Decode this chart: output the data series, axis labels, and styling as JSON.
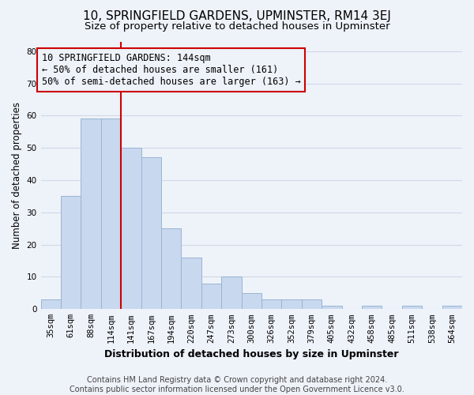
{
  "title": "10, SPRINGFIELD GARDENS, UPMINSTER, RM14 3EJ",
  "subtitle": "Size of property relative to detached houses in Upminster",
  "xlabel": "Distribution of detached houses by size in Upminster",
  "ylabel": "Number of detached properties",
  "bar_labels": [
    "35sqm",
    "61sqm",
    "88sqm",
    "114sqm",
    "141sqm",
    "167sqm",
    "194sqm",
    "220sqm",
    "247sqm",
    "273sqm",
    "300sqm",
    "326sqm",
    "352sqm",
    "379sqm",
    "405sqm",
    "432sqm",
    "458sqm",
    "485sqm",
    "511sqm",
    "538sqm",
    "564sqm"
  ],
  "bar_values": [
    3,
    35,
    59,
    59,
    50,
    47,
    25,
    16,
    8,
    10,
    5,
    3,
    3,
    3,
    1,
    0,
    1,
    0,
    1,
    0,
    1
  ],
  "bar_color": "#c8d8ee",
  "bar_edge_color": "#9ab4d4",
  "vline_x_index": 3.5,
  "vline_color": "#cc0000",
  "annotation_line1": "10 SPRINGFIELD GARDENS: 144sqm",
  "annotation_line2": "← 50% of detached houses are smaller (161)",
  "annotation_line3": "50% of semi-detached houses are larger (163) →",
  "ylim": [
    0,
    83
  ],
  "yticks": [
    0,
    10,
    20,
    30,
    40,
    50,
    60,
    70,
    80
  ],
  "footer": "Contains HM Land Registry data © Crown copyright and database right 2024.\nContains public sector information licensed under the Open Government Licence v3.0.",
  "bg_color": "#eef2f9",
  "grid_color": "#d0d8e8",
  "title_fontsize": 11,
  "subtitle_fontsize": 9.5,
  "axis_xlabel_fontsize": 9,
  "axis_ylabel_fontsize": 8.5,
  "tick_fontsize": 7.5,
  "annotation_fontsize": 8.5,
  "footer_fontsize": 7
}
